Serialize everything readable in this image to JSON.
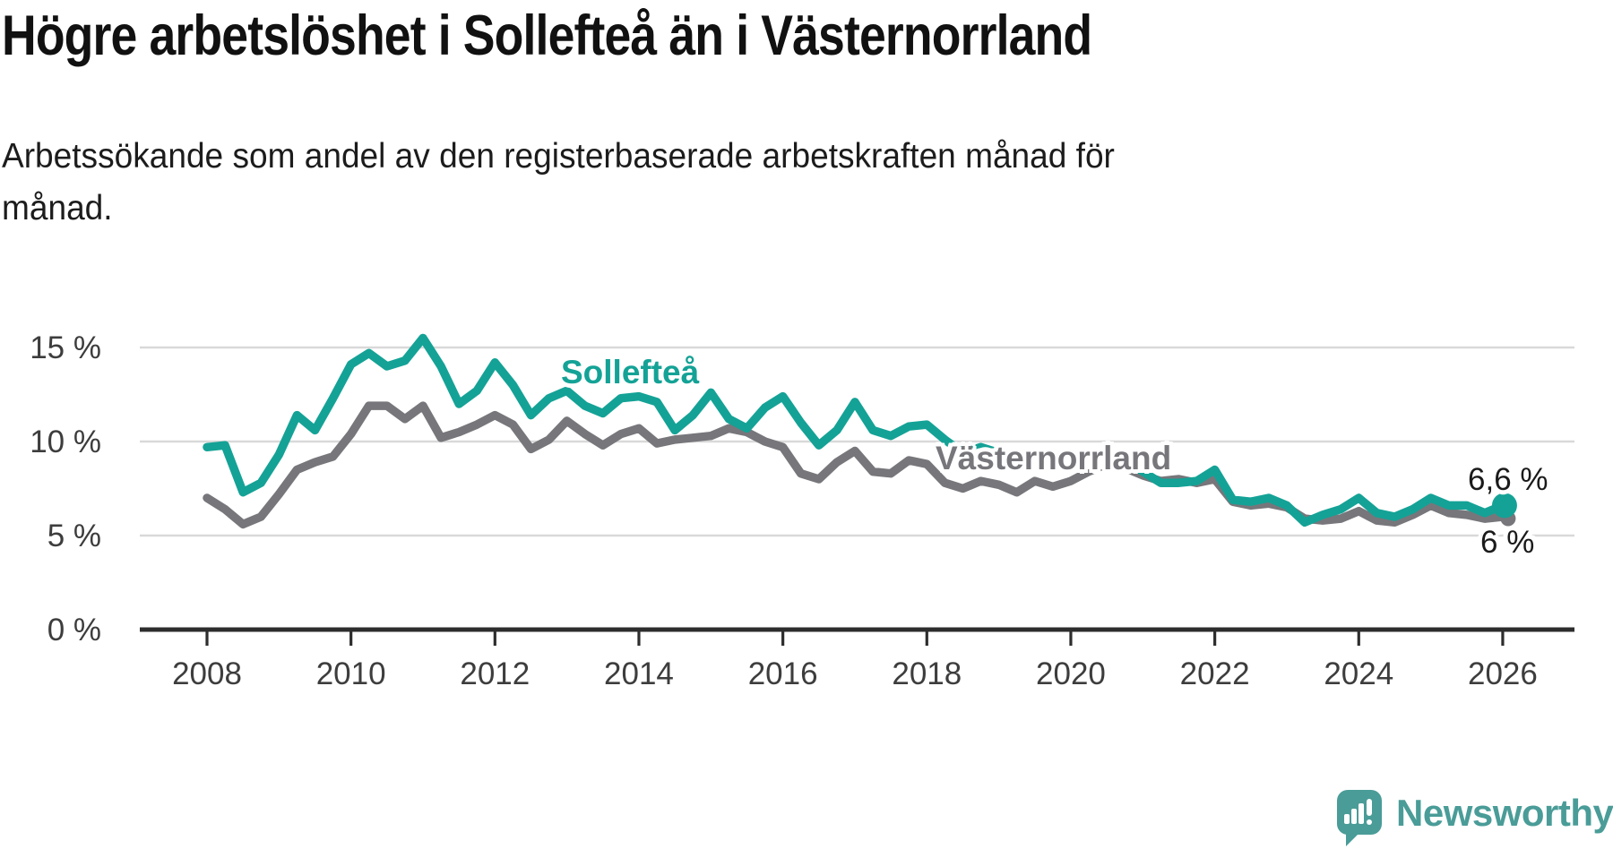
{
  "title": "Högre arbetslöshet i Sollefteå än i Västernorrland",
  "subtitle": {
    "line1": "Arbetssökande som andel av den registerbaserade arbetskraften månad för",
    "line2": "månad."
  },
  "chart_data": {
    "type": "line",
    "unit": "%",
    "grid": "horizontal",
    "legend_position": "inline-labels",
    "ylim": [
      0,
      16
    ],
    "xlim": [
      2008,
      2026
    ],
    "x": [
      2008,
      2008.25,
      2008.5,
      2008.75,
      2009,
      2009.25,
      2009.5,
      2009.75,
      2010,
      2010.25,
      2010.5,
      2010.75,
      2011,
      2011.25,
      2011.5,
      2011.75,
      2012,
      2012.25,
      2012.5,
      2012.75,
      2013,
      2013.25,
      2013.5,
      2013.75,
      2014,
      2014.25,
      2014.5,
      2014.75,
      2015,
      2015.25,
      2015.5,
      2015.75,
      2016,
      2016.25,
      2016.5,
      2016.75,
      2017,
      2017.25,
      2017.5,
      2017.75,
      2018,
      2018.25,
      2018.5,
      2018.75,
      2019,
      2019.25,
      2019.5,
      2019.75,
      2020,
      2020.25,
      2020.5,
      2020.75,
      2021,
      2021.25,
      2021.5,
      2021.75,
      2022,
      2022.25,
      2022.5,
      2022.75,
      2023,
      2023.25,
      2023.5,
      2023.75,
      2024,
      2024.25,
      2024.5,
      2024.75,
      2025,
      2025.25,
      2025.5,
      2025.75,
      2026
    ],
    "series": [
      {
        "name": "Sollefteå",
        "color": "#14a296",
        "end_value_label": "6,6 %",
        "values": [
          9.7,
          9.8,
          7.3,
          7.8,
          9.3,
          11.4,
          10.6,
          12.3,
          14.1,
          14.7,
          14.0,
          14.3,
          15.5,
          14.0,
          12.0,
          12.7,
          14.2,
          13.0,
          11.4,
          12.3,
          12.7,
          11.9,
          11.5,
          12.3,
          12.4,
          12.1,
          10.6,
          11.4,
          12.6,
          11.2,
          10.7,
          11.8,
          12.4,
          11.0,
          9.8,
          10.6,
          12.1,
          10.6,
          10.3,
          10.8,
          10.9,
          10.1,
          9.4,
          9.7,
          9.4,
          9.0,
          9.2,
          9.0,
          9.0,
          9.2,
          9.4,
          9.0,
          8.4,
          7.8,
          7.8,
          7.9,
          8.5,
          6.9,
          6.8,
          7.0,
          6.6,
          5.7,
          6.1,
          6.4,
          7.0,
          6.2,
          6.0,
          6.4,
          7.0,
          6.6,
          6.6,
          6.2,
          6.6
        ]
      },
      {
        "name": "Västernorrland",
        "color": "#77767b",
        "end_value_label": "6 %",
        "values": [
          7.0,
          6.4,
          5.6,
          6.0,
          7.2,
          8.5,
          8.9,
          9.2,
          10.4,
          11.9,
          11.9,
          11.2,
          11.9,
          10.2,
          10.5,
          10.9,
          11.4,
          10.9,
          9.6,
          10.1,
          11.1,
          10.4,
          9.8,
          10.4,
          10.7,
          9.9,
          10.1,
          10.2,
          10.3,
          10.7,
          10.5,
          10.0,
          9.7,
          8.3,
          8.0,
          8.9,
          9.5,
          8.4,
          8.3,
          9.0,
          8.8,
          7.8,
          7.5,
          7.9,
          7.7,
          7.3,
          7.9,
          7.6,
          7.9,
          8.4,
          8.8,
          8.6,
          8.2,
          7.9,
          8.0,
          7.8,
          8.0,
          6.8,
          6.6,
          6.7,
          6.5,
          5.9,
          5.8,
          5.9,
          6.3,
          5.8,
          5.7,
          6.1,
          6.6,
          6.2,
          6.1,
          5.9,
          6.0
        ]
      }
    ],
    "yticks": [
      {
        "value": 0,
        "label": "0 %"
      },
      {
        "value": 5,
        "label": "5 %"
      },
      {
        "value": 10,
        "label": "10 %"
      },
      {
        "value": 15,
        "label": "15 %"
      }
    ],
    "xticks": [
      {
        "value": 2008,
        "label": "2008"
      },
      {
        "value": 2010,
        "label": "2010"
      },
      {
        "value": 2012,
        "label": "2012"
      },
      {
        "value": 2014,
        "label": "2014"
      },
      {
        "value": 2016,
        "label": "2016"
      },
      {
        "value": 2018,
        "label": "2018"
      },
      {
        "value": 2020,
        "label": "2020"
      },
      {
        "value": 2022,
        "label": "2022"
      },
      {
        "value": 2024,
        "label": "2024"
      },
      {
        "value": 2026,
        "label": "2026"
      }
    ],
    "end_labels": [
      {
        "text": "6,6 %",
        "series": "Sollefteå"
      },
      {
        "text": "6 %",
        "series": "Västernorrland"
      }
    ]
  },
  "branding": {
    "name": "Newsworthy",
    "color": "#4a9c98"
  }
}
